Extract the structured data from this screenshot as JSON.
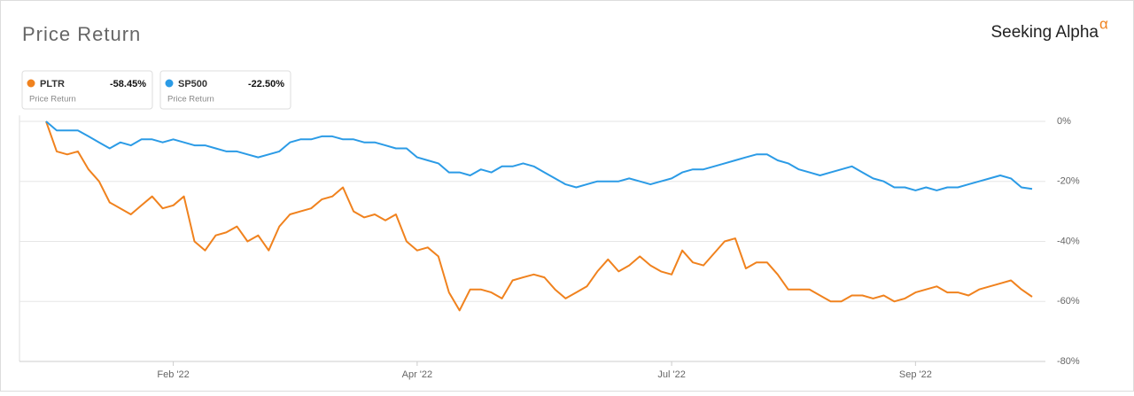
{
  "chart_data": {
    "type": "line",
    "title": "Price Return",
    "brand": "Seeking Alpha",
    "brand_mark": "α",
    "categories": [
      null,
      null,
      null,
      null,
      null,
      null,
      null,
      null,
      null,
      null,
      null,
      null,
      "Feb '22",
      null,
      null,
      null,
      null,
      null,
      null,
      null,
      null,
      null,
      null,
      null,
      null,
      null,
      null,
      null,
      null,
      null,
      null,
      null,
      null,
      null,
      null,
      "Apr '22",
      null,
      null,
      null,
      null,
      null,
      null,
      null,
      null,
      null,
      null,
      null,
      null,
      null,
      null,
      null,
      null,
      null,
      null,
      null,
      null,
      null,
      null,
      null,
      "Jul '22",
      null,
      null,
      null,
      null,
      null,
      null,
      null,
      null,
      null,
      null,
      null,
      null,
      null,
      null,
      null,
      null,
      null,
      null,
      null,
      null,
      null,
      null,
      "Sep '22",
      null,
      null,
      null,
      null,
      null,
      null,
      null,
      null,
      null,
      null,
      null
    ],
    "series": [
      {
        "name": "PLTR",
        "color": "#f0821e",
        "return_label": "-58.45%",
        "metric": "Price Return",
        "values": [
          0,
          -10,
          -11,
          -10,
          -16,
          -20,
          -27,
          -29,
          -31,
          -28,
          -25,
          -29,
          -28,
          -25,
          -40,
          -43,
          -38,
          -37,
          -35,
          -40,
          -38,
          -43,
          -35,
          -31,
          -30,
          -29,
          -26,
          -25,
          -22,
          -30,
          -32,
          -31,
          -33,
          -31,
          -40,
          -43,
          -42,
          -45,
          -57,
          -63,
          -56,
          -56,
          -57,
          -59,
          -53,
          -52,
          -51,
          -52,
          -56,
          -59,
          -57,
          -55,
          -50,
          -46,
          -50,
          -48,
          -45,
          -48,
          -50,
          -51,
          -43,
          -47,
          -48,
          -44,
          -40,
          -39,
          -49,
          -47,
          -47,
          -51,
          -56,
          -56,
          -56,
          -58,
          -60,
          -60,
          -58,
          -58,
          -59,
          -58,
          -60,
          -59,
          -57,
          -56,
          -55,
          -57,
          -57,
          -58,
          -56,
          -55,
          -54,
          -53,
          -56,
          -58.45
        ]
      },
      {
        "name": "SP500",
        "color": "#2b9be6",
        "return_label": "-22.50%",
        "metric": "Price Return",
        "values": [
          0,
          -3,
          -3,
          -3,
          -5,
          -7,
          -9,
          -7,
          -8,
          -6,
          -6,
          -7,
          -6,
          -7,
          -8,
          -8,
          -9,
          -10,
          -10,
          -11,
          -12,
          -11,
          -10,
          -7,
          -6,
          -6,
          -5,
          -5,
          -6,
          -6,
          -7,
          -7,
          -8,
          -9,
          -9,
          -12,
          -13,
          -14,
          -17,
          -17,
          -18,
          -16,
          -17,
          -15,
          -15,
          -14,
          -15,
          -17,
          -19,
          -21,
          -22,
          -21,
          -20,
          -20,
          -20,
          -19,
          -20,
          -21,
          -20,
          -19,
          -17,
          -16,
          -16,
          -15,
          -14,
          -13,
          -12,
          -11,
          -11,
          -13,
          -14,
          -16,
          -17,
          -18,
          -17,
          -16,
          -15,
          -17,
          -19,
          -20,
          -22,
          -22,
          -23,
          -22,
          -23,
          -22,
          -22,
          -21,
          -20,
          -19,
          -18,
          -19,
          -22,
          -22.5
        ]
      }
    ],
    "ylim": [
      -80,
      2
    ],
    "yticks": [
      {
        "value": 0,
        "label": "0%"
      },
      {
        "value": -20,
        "label": "-20%"
      },
      {
        "value": -40,
        "label": "-40%"
      },
      {
        "value": -60,
        "label": "-60%"
      },
      {
        "value": -80,
        "label": "-80%"
      }
    ],
    "grid": true
  }
}
